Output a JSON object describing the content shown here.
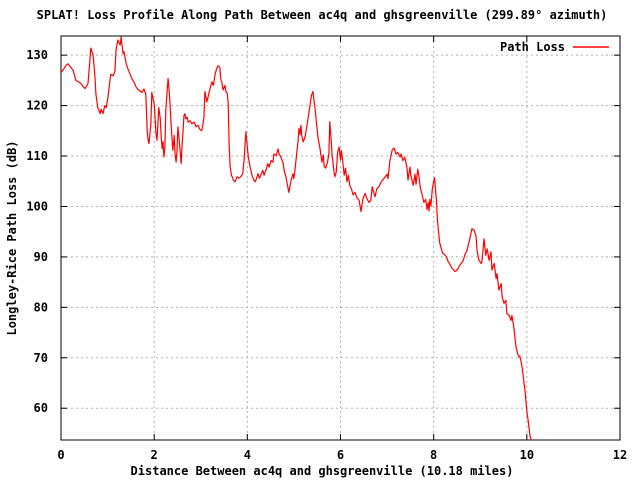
{
  "window": {
    "background": "#ffffff"
  },
  "chart_data": {
    "type": "line",
    "title": "SPLAT! Loss Profile Along Path Between ac4q and ghsgreenville (299.89° azimuth)",
    "xlabel": "Distance Between ac4q and ghsgreenville (10.18 miles)",
    "ylabel": "Longley-Rice Path Loss (dB)",
    "xlim": [
      0,
      12
    ],
    "ylim": [
      53.7,
      133.8
    ],
    "xticks": [
      0,
      2,
      4,
      6,
      8,
      10,
      12
    ],
    "yticks": [
      60,
      70,
      80,
      90,
      100,
      110,
      120,
      130
    ],
    "grid": true,
    "grid_style": "dashed",
    "legend": {
      "position": "inside-top-right",
      "entries": [
        {
          "label": "Path Loss",
          "color": "#ff0000"
        }
      ]
    },
    "colors": {
      "line": "#ff0000",
      "grid": "#b0b0b0",
      "border": "#000000",
      "text": "#000000",
      "background": "#ffffff"
    },
    "series": [
      {
        "name": "Path Loss",
        "color": "#ff0000",
        "points": [
          [
            0,
            126.5
          ],
          [
            0.06,
            127.3
          ],
          [
            0.11,
            128
          ],
          [
            0.15,
            128.3
          ],
          [
            0.19,
            127.8
          ],
          [
            0.26,
            127
          ],
          [
            0.32,
            125
          ],
          [
            0.39,
            124.6
          ],
          [
            0.43,
            124.4
          ],
          [
            0.47,
            123.8
          ],
          [
            0.52,
            123.4
          ],
          [
            0.58,
            124.4
          ],
          [
            0.62,
            129
          ],
          [
            0.64,
            131.4
          ],
          [
            0.69,
            130
          ],
          [
            0.73,
            125.6
          ],
          [
            0.75,
            122.3
          ],
          [
            0.79,
            119.6
          ],
          [
            0.84,
            118.4
          ],
          [
            0.86,
            119.3
          ],
          [
            0.9,
            118.4
          ],
          [
            0.94,
            120
          ],
          [
            0.97,
            119.6
          ],
          [
            1.01,
            121.7
          ],
          [
            1.05,
            124.9
          ],
          [
            1.07,
            126.2
          ],
          [
            1.12,
            125.9
          ],
          [
            1.16,
            126.9
          ],
          [
            1.18,
            131
          ],
          [
            1.22,
            133
          ],
          [
            1.27,
            132
          ],
          [
            1.29,
            133.6
          ],
          [
            1.33,
            130.3
          ],
          [
            1.35,
            130.7
          ],
          [
            1.4,
            128.3
          ],
          [
            1.44,
            127.2
          ],
          [
            1.48,
            126.3
          ],
          [
            1.52,
            125.4
          ],
          [
            1.57,
            124.6
          ],
          [
            1.61,
            123.7
          ],
          [
            1.65,
            123.2
          ],
          [
            1.7,
            122.9
          ],
          [
            1.74,
            122.6
          ],
          [
            1.78,
            123.3
          ],
          [
            1.82,
            122.3
          ],
          [
            1.85,
            115
          ],
          [
            1.87,
            113.1
          ],
          [
            1.89,
            112.5
          ],
          [
            1.93,
            116.5
          ],
          [
            1.95,
            122.6
          ],
          [
            2,
            120.3
          ],
          [
            2.04,
            114.5
          ],
          [
            2.06,
            113.1
          ],
          [
            2.1,
            119.6
          ],
          [
            2.13,
            117.5
          ],
          [
            2.15,
            113.8
          ],
          [
            2.17,
            111.5
          ],
          [
            2.19,
            112.8
          ],
          [
            2.21,
            109.8
          ],
          [
            2.23,
            111.8
          ],
          [
            2.25,
            119.1
          ],
          [
            2.28,
            123.1
          ],
          [
            2.3,
            125.4
          ],
          [
            2.32,
            123.1
          ],
          [
            2.34,
            120.4
          ],
          [
            2.36,
            117
          ],
          [
            2.38,
            113.8
          ],
          [
            2.4,
            111.1
          ],
          [
            2.43,
            114.1
          ],
          [
            2.45,
            110.2
          ],
          [
            2.47,
            108.8
          ],
          [
            2.49,
            111.1
          ],
          [
            2.51,
            115.8
          ],
          [
            2.53,
            113.8
          ],
          [
            2.58,
            108.5
          ],
          [
            2.6,
            112.2
          ],
          [
            2.62,
            114.8
          ],
          [
            2.64,
            118.1
          ],
          [
            2.66,
            118.4
          ],
          [
            2.68,
            117.4
          ],
          [
            2.71,
            117.7
          ],
          [
            2.73,
            116.7
          ],
          [
            2.77,
            117
          ],
          [
            2.81,
            116.4
          ],
          [
            2.86,
            116.7
          ],
          [
            2.9,
            115.8
          ],
          [
            2.94,
            116.1
          ],
          [
            2.98,
            115.3
          ],
          [
            3.02,
            115
          ],
          [
            3.04,
            115.8
          ],
          [
            3.07,
            117.8
          ],
          [
            3.09,
            122.8
          ],
          [
            3.11,
            121.7
          ],
          [
            3.13,
            120.7
          ],
          [
            3.16,
            121.8
          ],
          [
            3.2,
            123.4
          ],
          [
            3.24,
            124.7
          ],
          [
            3.27,
            124
          ],
          [
            3.31,
            126.3
          ],
          [
            3.34,
            127.3
          ],
          [
            3.37,
            127.9
          ],
          [
            3.41,
            127.6
          ],
          [
            3.43,
            125.2
          ],
          [
            3.45,
            124.7
          ],
          [
            3.48,
            123.1
          ],
          [
            3.52,
            124
          ],
          [
            3.54,
            122.8
          ],
          [
            3.57,
            122.4
          ],
          [
            3.59,
            120.4
          ],
          [
            3.61,
            111.8
          ],
          [
            3.63,
            107.9
          ],
          [
            3.66,
            106.2
          ],
          [
            3.7,
            105.2
          ],
          [
            3.74,
            104.9
          ],
          [
            3.78,
            105.9
          ],
          [
            3.82,
            105.6
          ],
          [
            3.86,
            105.9
          ],
          [
            3.9,
            106.5
          ],
          [
            3.93,
            109.2
          ],
          [
            3.95,
            112.2
          ],
          [
            3.97,
            114.8
          ],
          [
            4,
            111.8
          ],
          [
            4.02,
            109.8
          ],
          [
            4.06,
            107.9
          ],
          [
            4.1,
            106.2
          ],
          [
            4.14,
            105.2
          ],
          [
            4.17,
            104.9
          ],
          [
            4.2,
            105.6
          ],
          [
            4.23,
            106.5
          ],
          [
            4.26,
            105.6
          ],
          [
            4.29,
            106.2
          ],
          [
            4.33,
            107.2
          ],
          [
            4.36,
            106.2
          ],
          [
            4.4,
            107.2
          ],
          [
            4.44,
            108.5
          ],
          [
            4.47,
            107.8
          ],
          [
            4.51,
            109.1
          ],
          [
            4.55,
            108.8
          ],
          [
            4.57,
            110.4
          ],
          [
            4.62,
            110.1
          ],
          [
            4.66,
            111.4
          ],
          [
            4.68,
            110.4
          ],
          [
            4.72,
            109.8
          ],
          [
            4.77,
            108.5
          ],
          [
            4.79,
            107.2
          ],
          [
            4.83,
            105.8
          ],
          [
            4.87,
            103.8
          ],
          [
            4.89,
            102.8
          ],
          [
            4.94,
            105.2
          ],
          [
            4.98,
            106.5
          ],
          [
            5,
            105.5
          ],
          [
            5.02,
            107
          ],
          [
            5.04,
            108.8
          ],
          [
            5.06,
            110.5
          ],
          [
            5.09,
            113
          ],
          [
            5.11,
            115.5
          ],
          [
            5.13,
            114.3
          ],
          [
            5.15,
            116.1
          ],
          [
            5.17,
            114
          ],
          [
            5.2,
            112.8
          ],
          [
            5.24,
            113.8
          ],
          [
            5.28,
            116.1
          ],
          [
            5.32,
            118.4
          ],
          [
            5.35,
            120.4
          ],
          [
            5.38,
            122.1
          ],
          [
            5.41,
            122.8
          ],
          [
            5.43,
            121.1
          ],
          [
            5.45,
            119.7
          ],
          [
            5.49,
            116.1
          ],
          [
            5.52,
            113.5
          ],
          [
            5.56,
            111.5
          ],
          [
            5.6,
            108.8
          ],
          [
            5.63,
            110.2
          ],
          [
            5.65,
            107.9
          ],
          [
            5.68,
            107.6
          ],
          [
            5.72,
            108.8
          ],
          [
            5.75,
            110.5
          ],
          [
            5.77,
            116.8
          ],
          [
            5.8,
            113
          ],
          [
            5.82,
            110.2
          ],
          [
            5.86,
            106.9
          ],
          [
            5.88,
            105.9
          ],
          [
            5.91,
            106.9
          ],
          [
            5.94,
            110.9
          ],
          [
            5.97,
            111.8
          ],
          [
            6,
            109.2
          ],
          [
            6.02,
            111.1
          ],
          [
            6.05,
            108.8
          ],
          [
            6.08,
            106.2
          ],
          [
            6.11,
            107.6
          ],
          [
            6.14,
            104.9
          ],
          [
            6.17,
            106.2
          ],
          [
            6.2,
            104.2
          ],
          [
            6.24,
            103.3
          ],
          [
            6.27,
            102.3
          ],
          [
            6.31,
            102.8
          ],
          [
            6.35,
            101.8
          ],
          [
            6.4,
            101.2
          ],
          [
            6.44,
            99
          ],
          [
            6.48,
            101.5
          ],
          [
            6.53,
            102.6
          ],
          [
            6.57,
            101.5
          ],
          [
            6.61,
            100.8
          ],
          [
            6.65,
            101.2
          ],
          [
            6.68,
            103.9
          ],
          [
            6.74,
            101.9
          ],
          [
            6.78,
            103.5
          ],
          [
            6.83,
            104
          ],
          [
            6.87,
            104.8
          ],
          [
            6.91,
            105.3
          ],
          [
            6.96,
            105.9
          ],
          [
            7,
            106.4
          ],
          [
            7.02,
            105.5
          ],
          [
            7.06,
            109.1
          ],
          [
            7.11,
            111.2
          ],
          [
            7.15,
            111.6
          ],
          [
            7.19,
            110.4
          ],
          [
            7.23,
            110.7
          ],
          [
            7.28,
            109.8
          ],
          [
            7.3,
            110.4
          ],
          [
            7.34,
            109.1
          ],
          [
            7.38,
            109.8
          ],
          [
            7.43,
            107.5
          ],
          [
            7.45,
            105.2
          ],
          [
            7.49,
            107.8
          ],
          [
            7.51,
            106.2
          ],
          [
            7.56,
            104.2
          ],
          [
            7.6,
            106.4
          ],
          [
            7.62,
            104.4
          ],
          [
            7.66,
            107.4
          ],
          [
            7.69,
            105.5
          ],
          [
            7.71,
            103.8
          ],
          [
            7.75,
            102.4
          ],
          [
            7.79,
            100.8
          ],
          [
            7.83,
            101.4
          ],
          [
            7.86,
            99.4
          ],
          [
            7.88,
            100.8
          ],
          [
            7.9,
            99.1
          ],
          [
            7.92,
            101.4
          ],
          [
            7.94,
            100.1
          ],
          [
            7.97,
            103.5
          ],
          [
            8,
            105
          ],
          [
            8.02,
            105.7
          ],
          [
            8.04,
            103.4
          ],
          [
            8.06,
            101.1
          ],
          [
            8.08,
            97.4
          ],
          [
            8.1,
            95.4
          ],
          [
            8.13,
            92.8
          ],
          [
            8.15,
            92.1
          ],
          [
            8.19,
            90.8
          ],
          [
            8.23,
            90.5
          ],
          [
            8.27,
            90.1
          ],
          [
            8.31,
            89.1
          ],
          [
            8.35,
            88.5
          ],
          [
            8.39,
            87.8
          ],
          [
            8.43,
            87.4
          ],
          [
            8.46,
            87.1
          ],
          [
            8.5,
            87.4
          ],
          [
            8.53,
            87.8
          ],
          [
            8.57,
            88.5
          ],
          [
            8.6,
            88.8
          ],
          [
            8.64,
            89.4
          ],
          [
            8.67,
            90.5
          ],
          [
            8.71,
            91.1
          ],
          [
            8.76,
            93
          ],
          [
            8.8,
            94.6
          ],
          [
            8.82,
            95.6
          ],
          [
            8.87,
            95.3
          ],
          [
            8.91,
            94
          ],
          [
            8.93,
            91.3
          ],
          [
            8.97,
            89.3
          ],
          [
            9.02,
            88.7
          ],
          [
            9.04,
            89.3
          ],
          [
            9.08,
            93.6
          ],
          [
            9.12,
            90.3
          ],
          [
            9.15,
            91.6
          ],
          [
            9.19,
            89.3
          ],
          [
            9.23,
            91
          ],
          [
            9.25,
            87.4
          ],
          [
            9.3,
            88.7
          ],
          [
            9.34,
            85.7
          ],
          [
            9.36,
            86.7
          ],
          [
            9.4,
            83.4
          ],
          [
            9.45,
            84.7
          ],
          [
            9.47,
            82.1
          ],
          [
            9.51,
            80.8
          ],
          [
            9.55,
            81.4
          ],
          [
            9.57,
            78.8
          ],
          [
            9.62,
            78.4
          ],
          [
            9.66,
            77.4
          ],
          [
            9.68,
            78.4
          ],
          [
            9.72,
            76.1
          ],
          [
            9.75,
            73.5
          ],
          [
            9.77,
            72
          ],
          [
            9.79,
            71.3
          ],
          [
            9.81,
            70.6
          ],
          [
            9.83,
            70.2
          ],
          [
            9.85,
            70.3
          ],
          [
            9.87,
            69.5
          ],
          [
            9.9,
            68
          ],
          [
            9.92,
            66.5
          ],
          [
            9.94,
            65
          ],
          [
            9.96,
            63.5
          ],
          [
            9.98,
            61.5
          ],
          [
            10,
            59.5
          ],
          [
            10.03,
            57.5
          ],
          [
            10.05,
            55.8
          ],
          [
            10.07,
            54.5
          ],
          [
            10.09,
            53.7
          ]
        ]
      }
    ]
  }
}
